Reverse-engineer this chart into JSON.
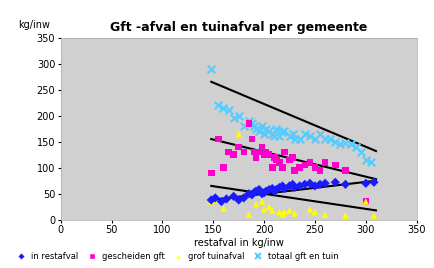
{
  "title": "Gft -afval en tuinafval per gemeente",
  "xlabel": "restafval in kg/inw",
  "ylabel": "kg/inw",
  "xlim": [
    0,
    350
  ],
  "ylim": [
    0,
    350
  ],
  "xticks": [
    0,
    50,
    100,
    150,
    200,
    250,
    300,
    350
  ],
  "yticks": [
    0,
    50,
    100,
    150,
    200,
    250,
    300,
    350
  ],
  "bg_color": "#d0d0d0",
  "in_restafval": {
    "x": [
      148,
      152,
      158,
      163,
      170,
      175,
      180,
      185,
      188,
      190,
      192,
      195,
      198,
      200,
      202,
      205,
      208,
      210,
      212,
      215,
      218,
      220,
      225,
      228,
      230,
      235,
      240,
      245,
      250,
      255,
      260,
      270,
      280,
      300,
      308
    ],
    "y": [
      38,
      42,
      35,
      40,
      45,
      38,
      42,
      50,
      48,
      52,
      55,
      58,
      50,
      52,
      55,
      58,
      60,
      55,
      58,
      62,
      65,
      60,
      65,
      68,
      62,
      65,
      68,
      70,
      65,
      68,
      70,
      72,
      68,
      70,
      72
    ],
    "color": "#1a1aff",
    "marker": "D",
    "size": 22,
    "label": "in restafval"
  },
  "gescheiden_gft": {
    "x": [
      148,
      155,
      160,
      165,
      170,
      175,
      180,
      185,
      188,
      190,
      192,
      195,
      198,
      200,
      202,
      205,
      208,
      210,
      212,
      215,
      218,
      220,
      225,
      228,
      230,
      235,
      240,
      245,
      250,
      255,
      260,
      270,
      280,
      300
    ],
    "y": [
      90,
      155,
      100,
      130,
      125,
      140,
      130,
      185,
      155,
      130,
      120,
      130,
      140,
      125,
      130,
      125,
      100,
      120,
      115,
      110,
      100,
      130,
      115,
      120,
      95,
      100,
      105,
      110,
      100,
      95,
      110,
      105,
      95,
      35
    ],
    "color": "#ff00cc",
    "marker": "s",
    "size": 22,
    "label": "gescheiden gft"
  },
  "grof_tuinafval": {
    "x": [
      148,
      152,
      160,
      175,
      185,
      192,
      198,
      200,
      205,
      208,
      215,
      218,
      220,
      225,
      230,
      245,
      250,
      260,
      280,
      300,
      308
    ],
    "y": [
      35,
      38,
      22,
      165,
      10,
      30,
      35,
      20,
      25,
      18,
      15,
      10,
      15,
      18,
      12,
      20,
      15,
      10,
      8,
      35,
      8
    ],
    "color": "#ffff00",
    "marker": "^",
    "size": 22,
    "label": "grof tuinafval"
  },
  "totaal_gft_tuin": {
    "x": [
      148,
      155,
      160,
      165,
      170,
      175,
      180,
      185,
      188,
      190,
      192,
      195,
      198,
      200,
      202,
      205,
      208,
      210,
      212,
      215,
      218,
      220,
      225,
      228,
      230,
      235,
      240,
      245,
      250,
      255,
      260,
      265,
      270,
      275,
      280,
      285,
      290,
      295,
      300,
      305
    ],
    "y": [
      290,
      220,
      215,
      210,
      195,
      200,
      180,
      190,
      185,
      180,
      175,
      170,
      180,
      165,
      175,
      170,
      165,
      160,
      175,
      160,
      168,
      170,
      160,
      165,
      155,
      155,
      165,
      160,
      155,
      165,
      155,
      155,
      150,
      145,
      148,
      145,
      140,
      130,
      115,
      110
    ],
    "color": "#55ccff",
    "marker": "x",
    "size": 30,
    "label": "totaal gft en tuin"
  },
  "trendlines": [
    {
      "x": [
        148,
        310
      ],
      "y": [
        265,
        132
      ],
      "color": "black",
      "lw": 1.5
    },
    {
      "x": [
        148,
        310
      ],
      "y": [
        155,
        78
      ],
      "color": "black",
      "lw": 1.5
    },
    {
      "x": [
        148,
        310
      ],
      "y": [
        65,
        18
      ],
      "color": "black",
      "lw": 1.5
    },
    {
      "x": [
        148,
        310
      ],
      "y": [
        38,
        75
      ],
      "color": "black",
      "lw": 1.5
    }
  ],
  "legend": [
    {
      "marker": "D",
      "color": "#1a1aff",
      "label": "in restafval"
    },
    {
      "marker": "s",
      "color": "#ff00cc",
      "label": "gescheiden gft"
    },
    {
      "marker": "^",
      "color": "#ffff00",
      "label": "grof tuinafval"
    },
    {
      "marker": "x",
      "color": "#55ccff",
      "label": "totaal gft en tuin"
    }
  ]
}
